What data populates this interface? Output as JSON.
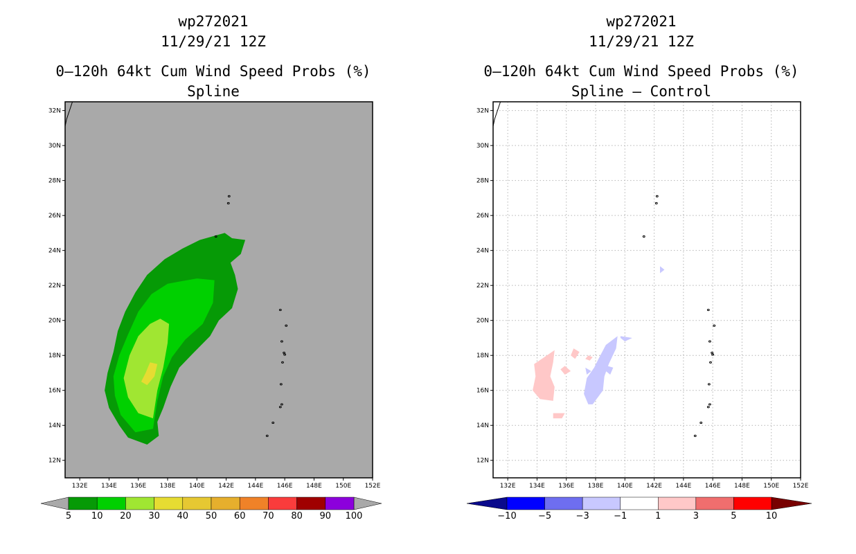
{
  "chart_data": [
    {
      "type": "heatmap",
      "title_lines": [
        "wp272021",
        "11/29/21 12Z",
        "0–120h 64kt Cum Wind Speed Probs (%)",
        "Spline"
      ],
      "xlim": [
        131,
        152
      ],
      "ylim": [
        11,
        32.5
      ],
      "x_ticks": [
        132,
        134,
        136,
        138,
        140,
        142,
        144,
        146,
        148,
        150,
        152
      ],
      "y_ticks": [
        12,
        14,
        16,
        18,
        20,
        22,
        24,
        26,
        28,
        30,
        32
      ],
      "x_tick_labels": [
        "132E",
        "134E",
        "136E",
        "138E",
        "140E",
        "142E",
        "144E",
        "146E",
        "148E",
        "150E",
        "152E"
      ],
      "y_tick_labels": [
        "12N",
        "14N",
        "16N",
        "18N",
        "20N",
        "22N",
        "24N",
        "26N",
        "28N",
        "30N",
        "32N"
      ],
      "grid": false,
      "background": "#a9a9a9",
      "colorbar": {
        "levels": [
          "5",
          "10",
          "20",
          "30",
          "40",
          "50",
          "60",
          "70",
          "80",
          "90",
          "100"
        ],
        "colors": [
          "#069a06",
          "#00d000",
          "#a0e632",
          "#e6dc32",
          "#e6c832",
          "#e6af2d",
          "#f08228",
          "#fa3c3c",
          "#a00000",
          "#8c00dc"
        ],
        "under_color": "#a9a9a9",
        "over_color": "#a9a9a9"
      },
      "regions": [
        {
          "level": "5-10",
          "color": "#069a06",
          "polygon": [
            [
              141.9,
              25.0
            ],
            [
              142.4,
              24.7
            ],
            [
              143.3,
              24.6
            ],
            [
              143.0,
              23.8
            ],
            [
              142.3,
              23.3
            ],
            [
              142.6,
              22.6
            ],
            [
              142.8,
              21.8
            ],
            [
              142.4,
              20.7
            ],
            [
              141.5,
              20.0
            ],
            [
              140.9,
              19.1
            ],
            [
              139.6,
              18.0
            ],
            [
              138.8,
              17.3
            ],
            [
              138.2,
              16.2
            ],
            [
              137.7,
              15.0
            ],
            [
              137.3,
              14.2
            ],
            [
              137.4,
              13.4
            ],
            [
              136.6,
              12.9
            ],
            [
              135.3,
              13.3
            ],
            [
              134.7,
              14.0
            ],
            [
              134.0,
              15.0
            ],
            [
              133.7,
              16.0
            ],
            [
              133.9,
              17.0
            ],
            [
              134.3,
              18.2
            ],
            [
              134.6,
              19.4
            ],
            [
              135.1,
              20.5
            ],
            [
              135.8,
              21.6
            ],
            [
              136.6,
              22.6
            ],
            [
              137.8,
              23.5
            ],
            [
              139.0,
              24.1
            ],
            [
              140.2,
              24.6
            ]
          ]
        },
        {
          "level": "10-20",
          "color": "#00d000",
          "polygon": [
            [
              140.0,
              22.4
            ],
            [
              141.2,
              22.3
            ],
            [
              141.1,
              21.0
            ],
            [
              140.4,
              19.8
            ],
            [
              139.2,
              18.9
            ],
            [
              138.3,
              17.9
            ],
            [
              137.7,
              16.8
            ],
            [
              137.3,
              15.4
            ],
            [
              137.0,
              13.8
            ],
            [
              135.8,
              13.6
            ],
            [
              134.8,
              14.6
            ],
            [
              134.4,
              15.7
            ],
            [
              134.3,
              16.8
            ],
            [
              134.7,
              18.0
            ],
            [
              135.3,
              19.2
            ],
            [
              136.0,
              20.5
            ],
            [
              136.9,
              21.5
            ],
            [
              138.0,
              22.1
            ]
          ]
        },
        {
          "level": "20-30",
          "color": "#a0e632",
          "polygon": [
            [
              136.8,
              19.8
            ],
            [
              137.5,
              20.1
            ],
            [
              138.1,
              19.8
            ],
            [
              138.0,
              18.7
            ],
            [
              137.7,
              17.3
            ],
            [
              137.3,
              16.0
            ],
            [
              137.0,
              14.4
            ],
            [
              136.0,
              14.7
            ],
            [
              135.3,
              15.6
            ],
            [
              135.0,
              16.7
            ],
            [
              135.4,
              18.0
            ],
            [
              136.0,
              19.1
            ]
          ]
        },
        {
          "level": "30-40",
          "color": "#e6dc32",
          "polygon": [
            [
              136.8,
              17.6
            ],
            [
              137.3,
              17.5
            ],
            [
              137.1,
              16.8
            ],
            [
              136.6,
              16.3
            ],
            [
              136.2,
              16.5
            ],
            [
              136.5,
              17.0
            ]
          ]
        }
      ]
    },
    {
      "type": "heatmap",
      "title_lines": [
        "wp272021",
        "11/29/21 12Z",
        "0–120h 64kt Cum Wind Speed Probs (%)",
        "Spline – Control"
      ],
      "xlim": [
        131,
        152
      ],
      "ylim": [
        11,
        32.5
      ],
      "x_ticks": [
        132,
        134,
        136,
        138,
        140,
        142,
        144,
        146,
        148,
        150,
        152
      ],
      "y_ticks": [
        12,
        14,
        16,
        18,
        20,
        22,
        24,
        26,
        28,
        30,
        32
      ],
      "x_tick_labels": [
        "132E",
        "134E",
        "136E",
        "138E",
        "140E",
        "142E",
        "144E",
        "146E",
        "148E",
        "150E",
        "152E"
      ],
      "y_tick_labels": [
        "12N",
        "14N",
        "16N",
        "18N",
        "20N",
        "22N",
        "24N",
        "26N",
        "28N",
        "30N",
        "32N"
      ],
      "grid": true,
      "background": "#ffffff",
      "colorbar": {
        "labels": [
          "−10",
          "−5",
          "−3",
          "−1",
          "1",
          "3",
          "5",
          "10"
        ],
        "colors": [
          "#0000ff",
          "#6e6ef0",
          "#c8c8ff",
          "#ffffff",
          "#ffc8c8",
          "#f06e6e",
          "#ff0000"
        ],
        "under_color": "#0a0a8c",
        "over_color": "#780000"
      },
      "regions": [
        {
          "level": "1-3",
          "color": "#ffc8c8",
          "polygon": [
            [
              133.8,
              17.5
            ],
            [
              134.5,
              17.9
            ],
            [
              135.2,
              18.3
            ],
            [
              135.1,
              17.6
            ],
            [
              134.9,
              16.8
            ],
            [
              135.2,
              16.2
            ],
            [
              135.1,
              15.4
            ],
            [
              134.2,
              15.5
            ],
            [
              133.7,
              16.0
            ],
            [
              133.9,
              16.8
            ]
          ]
        },
        {
          "level": "1-3",
          "color": "#ffc8c8",
          "polygon": [
            [
              135.9,
              17.4
            ],
            [
              136.3,
              17.1
            ],
            [
              135.9,
              16.9
            ],
            [
              135.6,
              17.2
            ]
          ]
        },
        {
          "level": "1-3",
          "color": "#ffc8c8",
          "polygon": [
            [
              136.5,
              18.4
            ],
            [
              136.9,
              18.2
            ],
            [
              136.6,
              17.8
            ],
            [
              136.3,
              18.0
            ]
          ]
        },
        {
          "level": "1-3",
          "color": "#ffc8c8",
          "polygon": [
            [
              137.5,
              18.0
            ],
            [
              137.8,
              17.9
            ],
            [
              137.6,
              17.7
            ],
            [
              137.3,
              17.8
            ]
          ]
        },
        {
          "level": "1-3",
          "color": "#ffc8c8",
          "polygon": [
            [
              135.1,
              14.7
            ],
            [
              135.9,
              14.7
            ],
            [
              135.7,
              14.4
            ],
            [
              135.1,
              14.4
            ]
          ]
        },
        {
          "level": "-3--1",
          "color": "#c8c8ff",
          "polygon": [
            [
              138.2,
              17.8
            ],
            [
              138.7,
              18.6
            ],
            [
              139.5,
              19.1
            ],
            [
              139.4,
              18.4
            ],
            [
              138.9,
              17.5
            ],
            [
              138.6,
              16.8
            ],
            [
              138.5,
              16.0
            ],
            [
              137.8,
              15.2
            ],
            [
              137.5,
              15.2
            ],
            [
              137.2,
              15.8
            ],
            [
              137.4,
              16.7
            ],
            [
              137.9,
              17.3
            ]
          ]
        },
        {
          "level": "-3--1",
          "color": "#c8c8ff",
          "polygon": [
            [
              137.3,
              17.3
            ],
            [
              137.7,
              17.1
            ],
            [
              137.4,
              16.9
            ]
          ]
        },
        {
          "level": "-3--1",
          "color": "#c8c8ff",
          "polygon": [
            [
              139.7,
              19.1
            ],
            [
              140.5,
              19.0
            ],
            [
              140.0,
              18.8
            ],
            [
              139.7,
              19.0
            ]
          ]
        },
        {
          "level": "-3--1",
          "color": "#c8c8ff",
          "polygon": [
            [
              138.8,
              17.4
            ],
            [
              139.2,
              17.3
            ],
            [
              139.0,
              16.9
            ],
            [
              138.7,
              17.1
            ]
          ]
        },
        {
          "level": "-3--1",
          "color": "#c8c8ff",
          "polygon": [
            [
              142.4,
              23.1
            ],
            [
              142.7,
              22.9
            ],
            [
              142.4,
              22.7
            ]
          ]
        }
      ]
    }
  ]
}
